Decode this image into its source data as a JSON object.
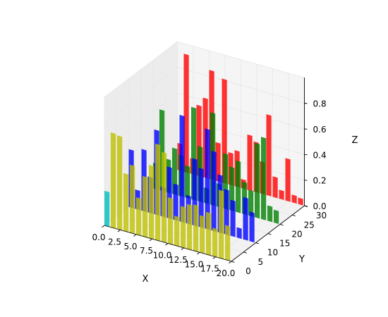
{
  "chart_data": {
    "type": "bar3d",
    "title": "",
    "xlabel": "X",
    "ylabel": "Y",
    "zlabel": "Z",
    "xlim": [
      0,
      20
    ],
    "ylim": [
      0,
      30
    ],
    "zlim": [
      0,
      1
    ],
    "x_ticks": [
      "0.0",
      "2.5",
      "5.0",
      "7.5",
      "10.0",
      "12.5",
      "15.0",
      "17.5",
      "20.0"
    ],
    "y_ticks": [
      "0",
      "5",
      "10",
      "15",
      "20",
      "25",
      "30"
    ],
    "z_ticks": [
      "0.0",
      "0.2",
      "0.4",
      "0.6",
      "0.8"
    ],
    "grid": true,
    "bar_alpha": 0.8,
    "series": [
      {
        "y": 30,
        "color": "#ff0000",
        "x": [
          0,
          1,
          2,
          3,
          4,
          5,
          6,
          7,
          8,
          9,
          10,
          11,
          12,
          13,
          14,
          15,
          16,
          17,
          18,
          19
        ],
        "values": [
          0.21,
          0.92,
          0.12,
          0.55,
          0.62,
          0.85,
          0.3,
          0.81,
          0.25,
          0.28,
          0.07,
          0.43,
          0.39,
          0.25,
          0.63,
          0.16,
          0.07,
          0.33,
          0.06,
          0.05
        ]
      },
      {
        "y": 20,
        "color": "#008000",
        "x": [
          0,
          1,
          2,
          3,
          4,
          5,
          6,
          7,
          8,
          9,
          10,
          11,
          12,
          13,
          14,
          15,
          16,
          17,
          18,
          19
        ],
        "values": [
          0.2,
          0.63,
          0.26,
          0.36,
          0.32,
          0.25,
          0.72,
          0.43,
          0.12,
          0.72,
          0.18,
          0.43,
          0.34,
          0.4,
          0.25,
          0.2,
          0.58,
          0.64,
          0.12,
          0.1
        ]
      },
      {
        "y": 10,
        "color": "#0000ff",
        "x": [
          0,
          1,
          2,
          3,
          4,
          5,
          6,
          7,
          8,
          9,
          10,
          11,
          12,
          13,
          14,
          15,
          16,
          17,
          18,
          19
        ],
        "values": [
          0.45,
          0.15,
          0.48,
          0.28,
          0.66,
          0.23,
          0.4,
          0.28,
          0.83,
          0.22,
          0.52,
          0.46,
          0.78,
          0.62,
          0.45,
          0.35,
          0.28,
          0.08,
          0.33,
          0.23
        ]
      },
      {
        "y": 0,
        "color": "#bfbf00",
        "x": [
          0,
          1,
          2,
          3,
          4,
          5,
          6,
          7,
          8,
          9,
          10,
          11,
          12,
          13,
          14,
          15,
          16,
          17,
          18,
          19
        ],
        "values": [
          0.27,
          0.74,
          0.73,
          0.45,
          0.53,
          0.29,
          0.47,
          0.57,
          0.75,
          0.7,
          0.36,
          0.23,
          0.32,
          0.35,
          0.36,
          0.29,
          0.33,
          0.22,
          0.53,
          0.27
        ],
        "first_bar_color": "#00bfbf"
      }
    ]
  }
}
